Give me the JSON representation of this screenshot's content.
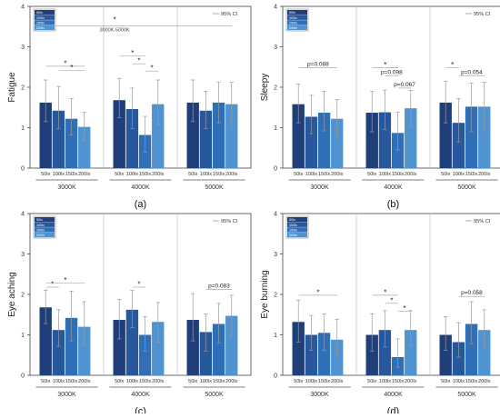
{
  "legend": {
    "items": [
      "50lx",
      "100lx",
      "150lx",
      "200lx"
    ],
    "colors": [
      "#1f3f7a",
      "#27589e",
      "#2f6fb8",
      "#4f93d1"
    ],
    "ci_label": "95% CI"
  },
  "chart_data": [
    {
      "type": "bar",
      "panel_label": "(a)",
      "ylabel": "Fatigue",
      "ylim": [
        0,
        4
      ],
      "yticks": [
        "0",
        "1",
        "2",
        "3",
        "4"
      ],
      "groups": [
        "3000K",
        "4000K",
        "5000K"
      ],
      "categories": [
        "50lx",
        "100lx",
        "150lx",
        "200lx"
      ],
      "values": [
        [
          1.62,
          1.42,
          1.22,
          1.02
        ],
        [
          1.68,
          1.46,
          0.82,
          1.58
        ],
        [
          1.62,
          1.42,
          1.62,
          1.58
        ]
      ],
      "ci": [
        [
          [
            1.15,
            2.18
          ],
          [
            0.98,
            2.02
          ],
          [
            0.82,
            1.72
          ],
          [
            0.68,
            1.38
          ]
        ],
        [
          [
            1.25,
            2.22
          ],
          [
            0.98,
            1.98
          ],
          [
            0.4,
            1.28
          ],
          [
            1.08,
            2.18
          ]
        ],
        [
          [
            1.15,
            2.18
          ],
          [
            0.98,
            1.9
          ],
          [
            1.12,
            2.12
          ],
          [
            1.1,
            2.12
          ]
        ]
      ],
      "annotations": [
        {
          "text": "*",
          "group": 0,
          "from": 0,
          "to": 3,
          "y": 2.52
        },
        {
          "text": "*",
          "group": 0,
          "from": 1,
          "to": 3,
          "y": 2.42
        },
        {
          "text": "*",
          "group": 1,
          "from": 0,
          "to": 2,
          "y": 2.78
        },
        {
          "text": "*",
          "group": 1,
          "from": 1,
          "to": 2,
          "y": 2.58
        },
        {
          "text": "*",
          "group": 1,
          "from": 2,
          "to": 3,
          "y": 2.4
        }
      ],
      "cross": {
        "text": "*",
        "label": "3000K-5000K",
        "from_group": 0,
        "to_group": 2,
        "y": 3.52
      }
    },
    {
      "type": "bar",
      "panel_label": "(b)",
      "ylabel": "Sleepy",
      "ylim": [
        0,
        4
      ],
      "yticks": [
        "0",
        "1",
        "2",
        "3",
        "4"
      ],
      "groups": [
        "3000K",
        "4000K",
        "5000K"
      ],
      "categories": [
        "50lx",
        "100lx",
        "150lx",
        "200lx"
      ],
      "values": [
        [
          1.58,
          1.27,
          1.37,
          1.22
        ],
        [
          1.37,
          1.38,
          0.87,
          1.48
        ],
        [
          1.62,
          1.12,
          1.52,
          1.52
        ]
      ],
      "ci": [
        [
          [
            1.12,
            2.08
          ],
          [
            0.85,
            1.8
          ],
          [
            0.92,
            1.9
          ],
          [
            0.78,
            1.7
          ]
        ],
        [
          [
            0.9,
            1.9
          ],
          [
            0.95,
            1.93
          ],
          [
            0.45,
            1.38
          ],
          [
            1.02,
            1.92
          ]
        ],
        [
          [
            1.12,
            2.15
          ],
          [
            0.65,
            1.72
          ],
          [
            0.9,
            2.1
          ],
          [
            0.92,
            2.12
          ]
        ]
      ],
      "annotations": [
        {
          "text": "p=0.088",
          "group": 0,
          "from": 0,
          "to": 3,
          "y": 2.48
        },
        {
          "text": "*",
          "group": 1,
          "from": 0,
          "to": 2,
          "y": 2.48
        },
        {
          "text": "p=0.098",
          "group": 1,
          "from": 1,
          "to": 2,
          "y": 2.28
        },
        {
          "text": "p=0.067",
          "group": 1,
          "from": 2,
          "to": 3,
          "y": 1.98
        },
        {
          "text": "*",
          "group": 2,
          "from": 0,
          "to": 1,
          "y": 2.48
        },
        {
          "text": "p=0.054",
          "group": 2,
          "from": 1,
          "to": 3,
          "y": 2.28
        }
      ],
      "cross": null
    },
    {
      "type": "bar",
      "panel_label": "(c)",
      "ylabel": "Eye aching",
      "ylim": [
        0,
        4
      ],
      "yticks": [
        "0",
        "1",
        "2",
        "3",
        "4"
      ],
      "groups": [
        "3000K",
        "4000K",
        "5000K"
      ],
      "categories": [
        "50lx",
        "100lx",
        "150lx",
        "200lx"
      ],
      "values": [
        [
          1.68,
          1.12,
          1.42,
          1.2
        ],
        [
          1.37,
          1.62,
          1.0,
          1.32
        ],
        [
          1.37,
          1.07,
          1.27,
          1.47
        ]
      ],
      "ci": [
        [
          [
            1.28,
            2.1
          ],
          [
            0.72,
            1.62
          ],
          [
            0.85,
            2.08
          ],
          [
            0.75,
            1.82
          ]
        ],
        [
          [
            0.9,
            1.88
          ],
          [
            1.18,
            2.1
          ],
          [
            0.6,
            1.45
          ],
          [
            0.82,
            1.8
          ]
        ],
        [
          [
            0.85,
            2.02
          ],
          [
            0.6,
            1.52
          ],
          [
            0.8,
            1.78
          ],
          [
            0.98,
            1.98
          ]
        ]
      ],
      "annotations": [
        {
          "text": "*",
          "group": 0,
          "from": 0,
          "to": 1,
          "y": 2.18
        },
        {
          "text": "*",
          "group": 0,
          "from": 0,
          "to": 3,
          "y": 2.28
        },
        {
          "text": "*",
          "group": 1,
          "from": 1,
          "to": 2,
          "y": 2.18
        },
        {
          "text": "p=0.083",
          "group": 2,
          "from": 1,
          "to": 3,
          "y": 2.12
        }
      ],
      "cross": null
    },
    {
      "type": "bar",
      "panel_label": "(d)",
      "ylabel": "Eye burning",
      "ylim": [
        0,
        4
      ],
      "yticks": [
        "0",
        "1",
        "2",
        "3",
        "4"
      ],
      "groups": [
        "3000K",
        "4000K",
        "5000K"
      ],
      "categories": [
        "50lx",
        "100lx",
        "150lx",
        "200lx"
      ],
      "values": [
        [
          1.32,
          1.0,
          1.05,
          0.88
        ],
        [
          1.0,
          1.12,
          0.45,
          1.12
        ],
        [
          1.0,
          0.82,
          1.27,
          1.12
        ]
      ],
      "ci": [
        [
          [
            0.82,
            1.85
          ],
          [
            0.62,
            1.48
          ],
          [
            0.62,
            1.52
          ],
          [
            0.5,
            1.38
          ]
        ],
        [
          [
            0.6,
            1.52
          ],
          [
            0.7,
            1.6
          ],
          [
            0.2,
            0.9
          ],
          [
            0.72,
            1.6
          ]
        ],
        [
          [
            0.62,
            1.45
          ],
          [
            0.45,
            1.3
          ],
          [
            0.78,
            1.82
          ],
          [
            0.68,
            1.62
          ]
        ]
      ],
      "annotations": [
        {
          "text": "*",
          "group": 0,
          "from": 0,
          "to": 3,
          "y": 1.98
        },
        {
          "text": "*",
          "group": 1,
          "from": 0,
          "to": 2,
          "y": 1.98
        },
        {
          "text": "*",
          "group": 1,
          "from": 1,
          "to": 2,
          "y": 1.78
        },
        {
          "text": "*",
          "group": 1,
          "from": 2,
          "to": 3,
          "y": 1.58
        },
        {
          "text": "p=0.058",
          "group": 2,
          "from": 1,
          "to": 3,
          "y": 1.95
        }
      ],
      "cross": null
    }
  ]
}
